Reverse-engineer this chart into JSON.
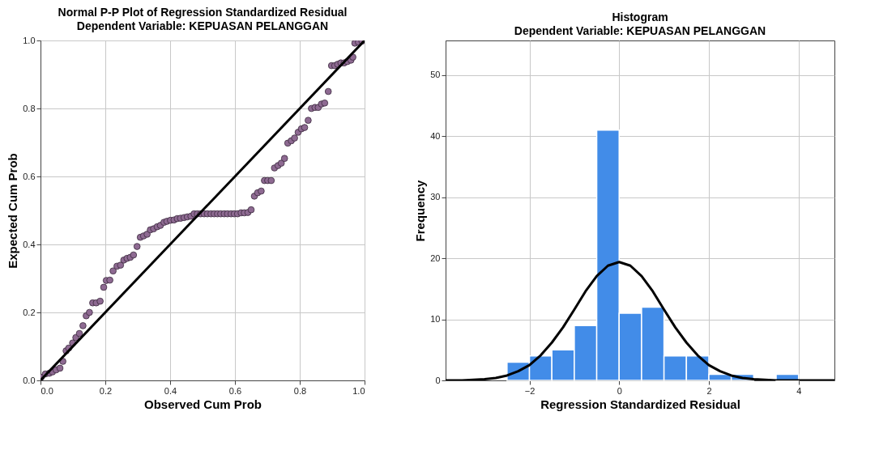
{
  "chart_data": [
    {
      "type": "scatter",
      "title": "Normal P-P Plot of Regression Standardized Residual",
      "subtitle": "Dependent Variable: KEPUASAN PELANGGAN",
      "xlabel": "Observed Cum Prob",
      "ylabel": "Expected Cum Prob",
      "xlim": [
        0,
        1
      ],
      "ylim": [
        0,
        1
      ],
      "xticks": [
        {
          "value": 0,
          "label": "0.0"
        },
        0.2,
        0.4,
        0.6,
        0.8,
        {
          "value": 1,
          "label": "1.0"
        }
      ],
      "yticks": [
        {
          "value": 0,
          "label": "0.0"
        },
        0.2,
        0.4,
        0.6,
        0.8,
        {
          "value": 1,
          "label": "1.0"
        }
      ],
      "grid": true,
      "series": [
        {
          "type": "scatter",
          "marker": "circle",
          "color": "#8e6a92",
          "x": [
            0.002,
            0.015,
            0.027,
            0.037,
            0.048,
            0.06,
            0.069,
            0.079,
            0.087,
            0.099,
            0.109,
            0.12,
            0.131,
            0.141,
            0.151,
            0.161,
            0.172,
            0.184,
            0.195,
            0.203,
            0.214,
            0.224,
            0.236,
            0.247,
            0.257,
            0.267,
            0.277,
            0.287,
            0.298,
            0.308,
            0.318,
            0.329,
            0.339,
            0.349,
            0.36,
            0.37,
            0.381,
            0.39,
            0.401,
            0.412,
            0.422,
            0.432,
            0.443,
            0.453,
            0.464,
            0.474,
            0.484,
            0.494,
            0.505,
            0.515,
            0.526,
            0.536,
            0.546,
            0.556,
            0.567,
            0.577,
            0.588,
            0.598,
            0.608,
            0.619,
            0.629,
            0.64,
            0.65,
            0.66,
            0.67,
            0.681,
            0.691,
            0.701,
            0.712,
            0.722,
            0.733,
            0.743,
            0.753,
            0.763,
            0.774,
            0.784,
            0.795,
            0.805,
            0.815,
            0.826,
            0.836,
            0.847,
            0.857,
            0.867,
            0.877,
            0.888,
            0.898,
            0.908,
            0.917,
            0.927,
            0.937,
            0.947,
            0.958,
            0.964,
            0.97,
            0.981,
            0.992
          ],
          "values": [
            0.009,
            0.019,
            0.021,
            0.025,
            0.031,
            0.036,
            0.056,
            0.087,
            0.095,
            0.11,
            0.126,
            0.138,
            0.161,
            0.19,
            0.2,
            0.228,
            0.228,
            0.233,
            0.274,
            0.294,
            0.295,
            0.322,
            0.336,
            0.339,
            0.354,
            0.359,
            0.362,
            0.369,
            0.394,
            0.421,
            0.425,
            0.43,
            0.443,
            0.446,
            0.452,
            0.456,
            0.465,
            0.468,
            0.471,
            0.472,
            0.476,
            0.477,
            0.479,
            0.481,
            0.483,
            0.49,
            0.49,
            0.49,
            0.49,
            0.49,
            0.49,
            0.49,
            0.49,
            0.49,
            0.49,
            0.49,
            0.49,
            0.49,
            0.49,
            0.493,
            0.493,
            0.494,
            0.502,
            0.542,
            0.552,
            0.557,
            0.588,
            0.588,
            0.588,
            0.625,
            0.632,
            0.639,
            0.653,
            0.698,
            0.705,
            0.713,
            0.73,
            0.74,
            0.744,
            0.765,
            0.8,
            0.803,
            0.803,
            0.813,
            0.816,
            0.85,
            0.926,
            0.926,
            0.93,
            0.934,
            0.934,
            0.938,
            0.942,
            0.951,
            0.992,
            0.995,
            0.998
          ]
        },
        {
          "type": "line",
          "color": "#000000",
          "x": [
            0,
            1
          ],
          "values": [
            0,
            1
          ]
        }
      ]
    },
    {
      "type": "histogram",
      "title": "Histogram",
      "subtitle": "Dependent Variable: KEPUASAN PELANGGAN",
      "xlabel": "Regression Standardized Residual",
      "ylabel": "Frequency",
      "xlim": [
        -3.87,
        4.8
      ],
      "ylim": [
        0,
        55.7
      ],
      "xticks": [
        -2,
        0,
        2,
        4
      ],
      "yticks": [
        0,
        10,
        20,
        30,
        40,
        50
      ],
      "grid": true,
      "bins": [
        -2.5,
        -2,
        -1.5,
        -1,
        -0.5,
        0,
        0.5,
        1,
        1.5,
        2,
        2.5,
        3,
        3.5,
        4
      ],
      "values": [
        3,
        4,
        5,
        9,
        41,
        11,
        12,
        4,
        4,
        1,
        1,
        0,
        1
      ],
      "color": "#428ce8",
      "series": [
        {
          "type": "line",
          "color": "#000000",
          "x": [
            -3.87,
            -3.5,
            -3,
            -2.75,
            -2.5,
            -2.25,
            -2,
            -1.75,
            -1.5,
            -1.25,
            -1,
            -0.75,
            -0.5,
            -0.25,
            0,
            0.25,
            0.5,
            0.75,
            1,
            1.25,
            1.5,
            1.75,
            2,
            2.25,
            2.5,
            2.75,
            3,
            3.5,
            4,
            4.8
          ],
          "values": [
            0,
            0,
            0.2,
            0.4,
            0.8,
            1.5,
            2.5,
            4.1,
            6.2,
            8.7,
            11.6,
            14.6,
            17.1,
            18.8,
            19.4,
            18.8,
            17.1,
            14.6,
            11.6,
            8.7,
            6.2,
            4.1,
            2.5,
            1.5,
            0.8,
            0.4,
            0.2,
            0,
            0,
            0
          ]
        }
      ]
    }
  ]
}
